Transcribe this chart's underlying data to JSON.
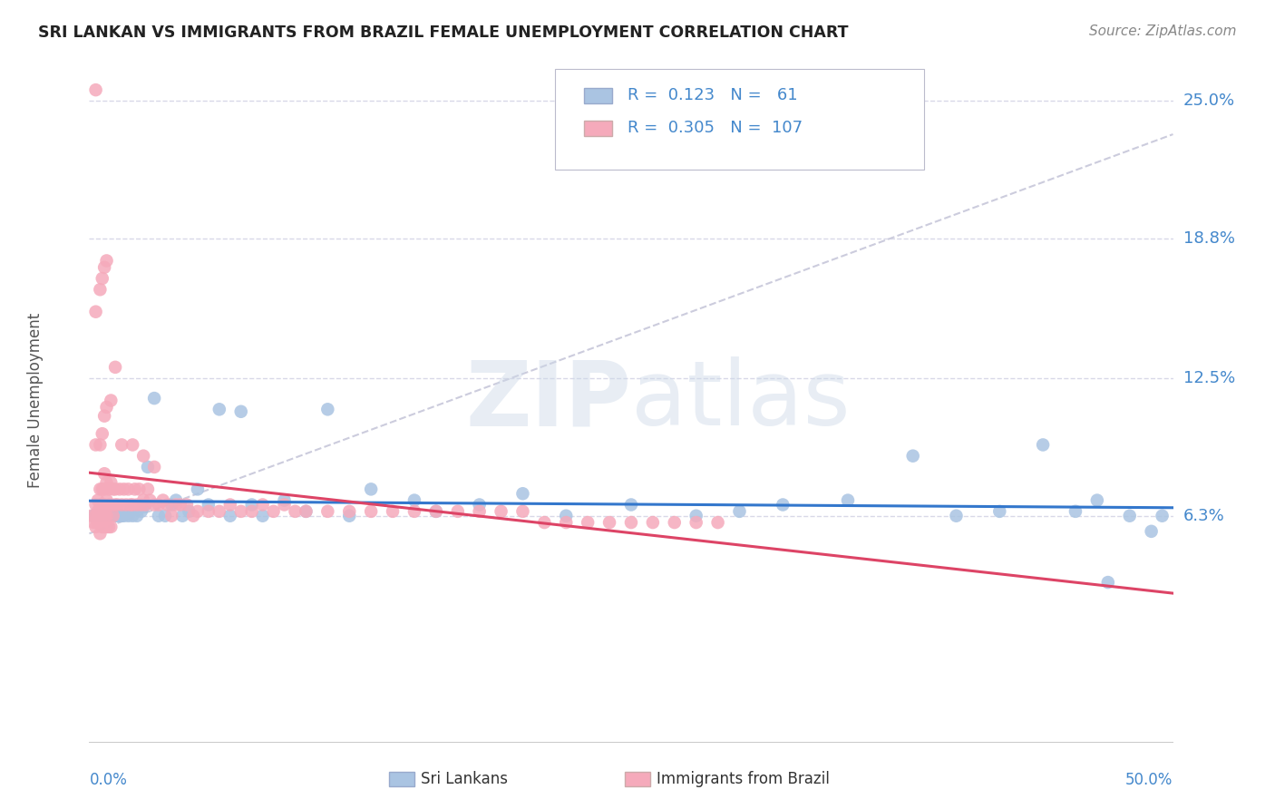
{
  "title": "SRI LANKAN VS IMMIGRANTS FROM BRAZIL FEMALE UNEMPLOYMENT CORRELATION CHART",
  "source": "Source: ZipAtlas.com",
  "ylabel": "Female Unemployment",
  "ytick_vals": [
    0.063,
    0.125,
    0.188,
    0.25
  ],
  "ytick_labels": [
    "6.3%",
    "12.5%",
    "18.8%",
    "25.0%"
  ],
  "xmin": 0.0,
  "xmax": 0.5,
  "ymin": -0.04,
  "ymax": 0.27,
  "watermark": "ZIPatlas",
  "sri_color": "#aac4e2",
  "brazil_color": "#f5aabb",
  "sri_line_color": "#3377cc",
  "brazil_line_color": "#dd4466",
  "trend_line_color": "#ccccdd",
  "background_color": "#ffffff",
  "grid_color": "#d8d8e8",
  "title_color": "#222222",
  "axis_color": "#4488cc",
  "sri_x": [
    0.002,
    0.003,
    0.004,
    0.005,
    0.006,
    0.007,
    0.008,
    0.009,
    0.01,
    0.011,
    0.012,
    0.013,
    0.014,
    0.015,
    0.016,
    0.018,
    0.019,
    0.02,
    0.022,
    0.024,
    0.025,
    0.027,
    0.03,
    0.032,
    0.035,
    0.038,
    0.04,
    0.043,
    0.046,
    0.05,
    0.055,
    0.06,
    0.065,
    0.07,
    0.075,
    0.08,
    0.09,
    0.1,
    0.11,
    0.12,
    0.13,
    0.15,
    0.16,
    0.18,
    0.2,
    0.22,
    0.25,
    0.28,
    0.3,
    0.32,
    0.35,
    0.38,
    0.4,
    0.42,
    0.44,
    0.455,
    0.465,
    0.47,
    0.48,
    0.49,
    0.495
  ],
  "sri_y": [
    0.063,
    0.063,
    0.063,
    0.063,
    0.063,
    0.063,
    0.063,
    0.063,
    0.063,
    0.063,
    0.063,
    0.063,
    0.063,
    0.063,
    0.063,
    0.063,
    0.065,
    0.063,
    0.063,
    0.065,
    0.067,
    0.085,
    0.116,
    0.063,
    0.063,
    0.068,
    0.07,
    0.063,
    0.065,
    0.075,
    0.068,
    0.111,
    0.063,
    0.11,
    0.068,
    0.063,
    0.07,
    0.065,
    0.111,
    0.063,
    0.075,
    0.07,
    0.065,
    0.068,
    0.073,
    0.063,
    0.068,
    0.063,
    0.065,
    0.068,
    0.07,
    0.09,
    0.063,
    0.065,
    0.095,
    0.065,
    0.07,
    0.033,
    0.063,
    0.056,
    0.063
  ],
  "brazil_x": [
    0.001,
    0.002,
    0.003,
    0.003,
    0.003,
    0.004,
    0.004,
    0.004,
    0.005,
    0.005,
    0.005,
    0.005,
    0.006,
    0.006,
    0.006,
    0.006,
    0.007,
    0.007,
    0.007,
    0.007,
    0.007,
    0.008,
    0.008,
    0.008,
    0.008,
    0.009,
    0.009,
    0.009,
    0.01,
    0.01,
    0.01,
    0.011,
    0.011,
    0.012,
    0.012,
    0.013,
    0.014,
    0.015,
    0.016,
    0.017,
    0.018,
    0.019,
    0.02,
    0.021,
    0.022,
    0.023,
    0.024,
    0.025,
    0.026,
    0.027,
    0.028,
    0.03,
    0.032,
    0.034,
    0.036,
    0.038,
    0.04,
    0.042,
    0.045,
    0.048,
    0.05,
    0.055,
    0.06,
    0.065,
    0.07,
    0.075,
    0.08,
    0.085,
    0.09,
    0.095,
    0.1,
    0.11,
    0.12,
    0.13,
    0.14,
    0.15,
    0.16,
    0.17,
    0.18,
    0.19,
    0.2,
    0.21,
    0.22,
    0.23,
    0.24,
    0.25,
    0.26,
    0.27,
    0.28,
    0.29,
    0.003,
    0.005,
    0.006,
    0.007,
    0.008,
    0.01,
    0.015,
    0.02,
    0.025,
    0.03,
    0.003,
    0.005,
    0.006,
    0.007,
    0.008,
    0.003,
    0.012
  ],
  "brazil_y": [
    0.063,
    0.06,
    0.058,
    0.063,
    0.068,
    0.06,
    0.065,
    0.07,
    0.055,
    0.06,
    0.068,
    0.075,
    0.058,
    0.063,
    0.068,
    0.075,
    0.058,
    0.063,
    0.068,
    0.075,
    0.082,
    0.058,
    0.063,
    0.07,
    0.078,
    0.058,
    0.068,
    0.075,
    0.058,
    0.068,
    0.078,
    0.063,
    0.075,
    0.068,
    0.075,
    0.068,
    0.075,
    0.068,
    0.075,
    0.068,
    0.075,
    0.068,
    0.068,
    0.075,
    0.068,
    0.075,
    0.068,
    0.07,
    0.068,
    0.075,
    0.07,
    0.068,
    0.068,
    0.07,
    0.068,
    0.063,
    0.068,
    0.068,
    0.068,
    0.063,
    0.065,
    0.065,
    0.065,
    0.068,
    0.065,
    0.065,
    0.068,
    0.065,
    0.068,
    0.065,
    0.065,
    0.065,
    0.065,
    0.065,
    0.065,
    0.065,
    0.065,
    0.065,
    0.065,
    0.065,
    0.065,
    0.06,
    0.06,
    0.06,
    0.06,
    0.06,
    0.06,
    0.06,
    0.06,
    0.06,
    0.095,
    0.095,
    0.1,
    0.108,
    0.112,
    0.115,
    0.095,
    0.095,
    0.09,
    0.085,
    0.155,
    0.165,
    0.17,
    0.175,
    0.178,
    0.255,
    0.13
  ]
}
